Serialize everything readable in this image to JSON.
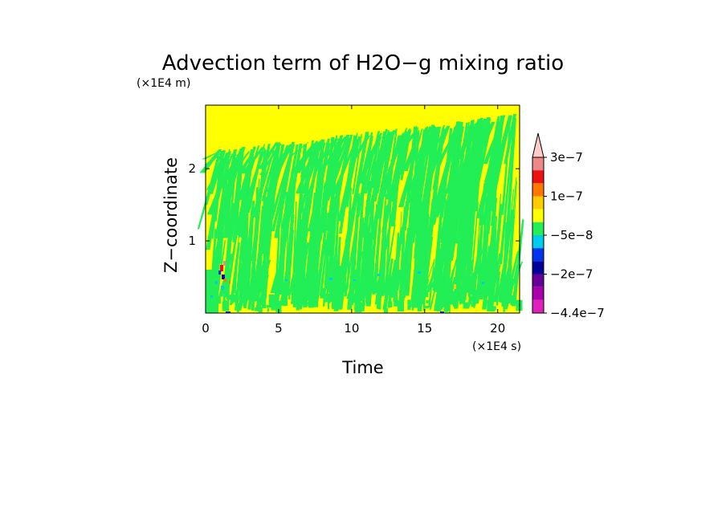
{
  "chart_data": {
    "type": "heatmap",
    "title": "Advection term of H2O−g mixing ratio",
    "xlabel": "Time",
    "ylabel": "Z−coordinate",
    "x_unit_label": "(×1E4 s)",
    "y_unit_label": "(×1E4 m)",
    "xlim": [
      0,
      21.5
    ],
    "ylim": [
      0,
      2.88
    ],
    "x_ticks": [
      0,
      5,
      10,
      15,
      20
    ],
    "x_tick_labels": [
      "0",
      "5",
      "10",
      "15",
      "20"
    ],
    "y_ticks": [
      1,
      2
    ],
    "y_tick_labels": [
      "1",
      "2"
    ],
    "background_level_color": "#ffff00",
    "dominant_levels": [
      "#ffff00",
      "#22ee55"
    ],
    "colorbar": {
      "labels": [
        "3e−7",
        "1e−7",
        "−5e−8",
        "−2e−7",
        "−4.4e−7"
      ],
      "colors": [
        "#ee8888",
        "#ee1111",
        "#ff7700",
        "#ffcc00",
        "#ffff00",
        "#22ee55",
        "#00ccee",
        "#0033ee",
        "#000099",
        "#660099",
        "#aa00aa",
        "#dd22bb"
      ],
      "over_color": "#ffcccc"
    },
    "grid": false
  }
}
